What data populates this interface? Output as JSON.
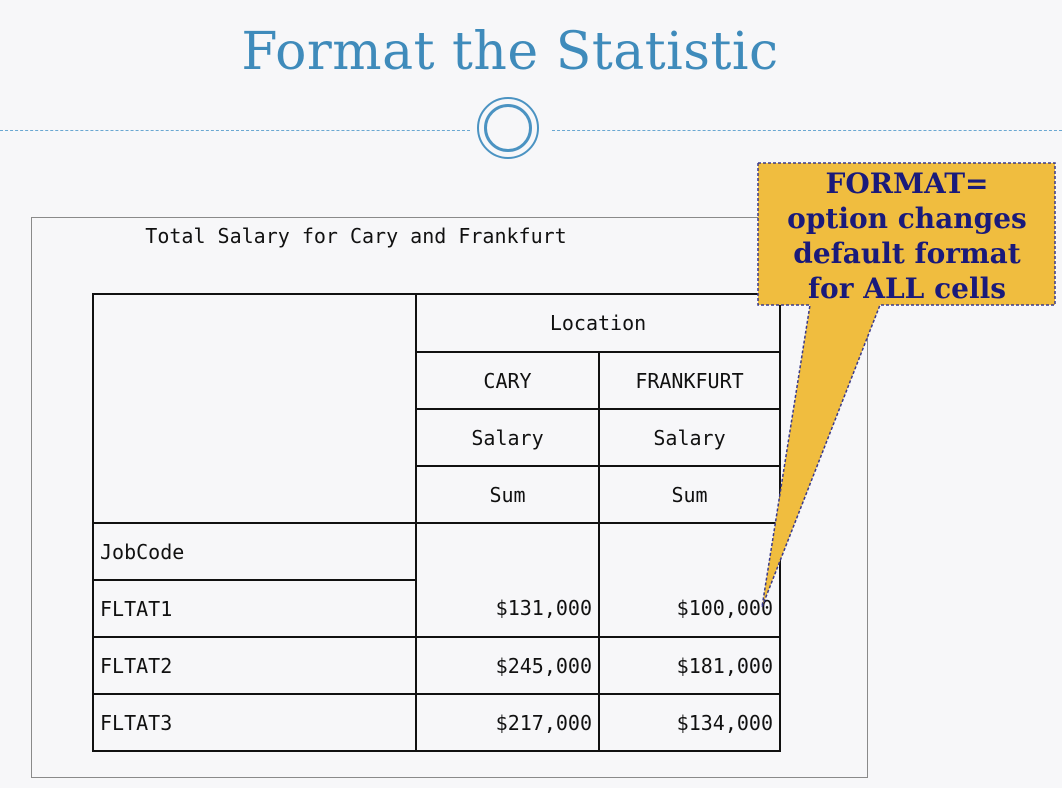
{
  "slide": {
    "title": "Format the Statistic"
  },
  "report": {
    "title": "Total Salary for Cary and Frankfurt",
    "table": {
      "column_group": "Location",
      "columns": [
        "CARY",
        "FRANKFURT"
      ],
      "analysis_var": "Salary",
      "statistic": "Sum",
      "row_header": "JobCode",
      "rows": [
        {
          "label": "FLTAT1",
          "cary": "$131,000",
          "frankfurt": "$100,000"
        },
        {
          "label": "FLTAT2",
          "cary": "$245,000",
          "frankfurt": "$181,000"
        },
        {
          "label": "FLTAT3",
          "cary": "$217,000",
          "frankfurt": "$134,000"
        }
      ]
    }
  },
  "callout": {
    "lines": [
      "FORMAT=",
      "option changes",
      "default format",
      "for ALL cells"
    ],
    "fill_color": "#f0bd3f",
    "text_color": "#1a1a7a"
  },
  "colors": {
    "title": "#3f8bbb",
    "background": "#f7f7f9"
  }
}
